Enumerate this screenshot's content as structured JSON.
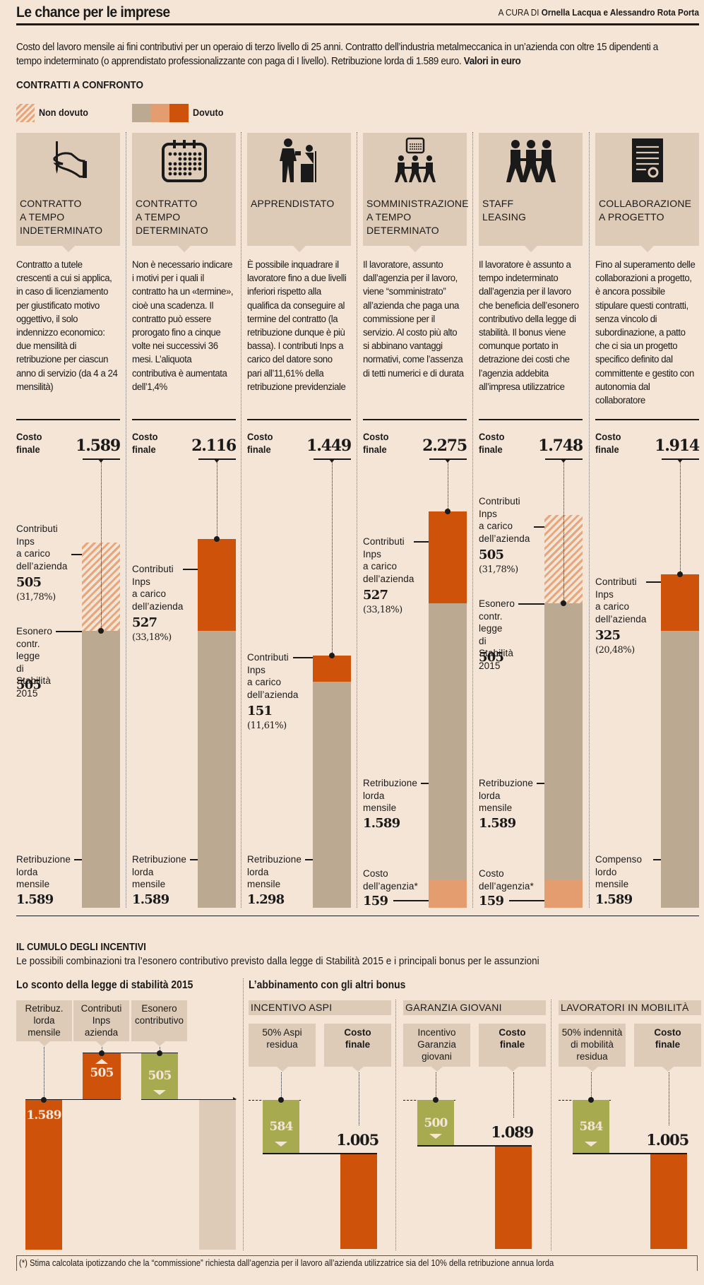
{
  "header": {
    "title": "Le chance per le imprese",
    "credit_prefix": "A CURA DI",
    "credit_authors": "Ornella Lacqua e Alessandro Rota Porta"
  },
  "intro": {
    "text": "Costo del lavoro mensile ai fini contributivi per un operaio di terzo livello di 25 anni. Contratto dell’industria metalmeccanica in un’azienda con oltre 15 dipendenti a tempo indeterminato (o apprendistato professionalizzante con paga di I livello). Retribuzione lorda di 1.589 euro. ",
    "bold_suffix": "Valori in euro"
  },
  "section1": {
    "title": "CONTRATTI A CONFRONTO",
    "legend": {
      "non_dovuto": "Non dovuto",
      "dovuto": "Dovuto",
      "colors": {
        "base": "#bca991",
        "agency": "#e49d6e",
        "inps": "#cf520a",
        "hatch": "#e7a67b"
      }
    }
  },
  "chart_data": [
    {
      "type": "bar",
      "stacked": true,
      "title": "CONTRATTI A CONFRONTO",
      "units": "euro",
      "costo_label": "Costo finale",
      "categories": [
        "CONTRATTO A TEMPO INDETERMINATO",
        "CONTRATTO A TEMPO DETERMINATO",
        "APPRENDISTATO",
        "SOMMINISTRAZIONE A TEMPO DETERMINATO",
        "STAFF LEASING",
        "COLLABORAZIONE A PROGETTO"
      ],
      "contracts": [
        {
          "title_lines": [
            "CONTRATTO",
            "A TEMPO",
            "INDETERMINATO"
          ],
          "icon": "hand-signing-icon",
          "description": "Contratto a tutele crescenti a cui si applica, in caso di licenziamento per giustificato motivo oggettivo, il solo indennizzo economico: due mensilità di retribuzione per ciascun anno di servizio (da 4 a 24 mensilità)",
          "costo_finale": "1.589",
          "segments": [
            {
              "key": "base",
              "label_lines": [
                "Retribuzione",
                "lorda",
                "mensile"
              ],
              "value": 1589,
              "value_text": "1.589",
              "status": "dovuto"
            },
            {
              "key": "esonero",
              "label_lines": [
                "Esonero",
                "contr. legge",
                "di Stabilità",
                "2015"
              ],
              "value": 0,
              "value_text": "505",
              "status": "esonero"
            },
            {
              "key": "inps",
              "label_lines": [
                "Contributi",
                "Inps",
                "a carico",
                "dell’azienda"
              ],
              "value": 505,
              "value_text": "505",
              "pct": "(31,78%)",
              "status": "non_dovuto"
            }
          ]
        },
        {
          "title_lines": [
            "CONTRATTO",
            "A TEMPO",
            "DETERMINATO"
          ],
          "icon": "calendar-icon",
          "description": "Non è necessario indicare i motivi per i quali il contratto ha un «termine», cioè una scadenza. Il contratto può essere prorogato fino a cinque volte nei successivi 36 mesi. L’aliquota contributiva è aumentata dell’1,4%",
          "costo_finale": "2.116",
          "segments": [
            {
              "key": "base",
              "label_lines": [
                "Retribuzione",
                "lorda",
                "mensile"
              ],
              "value": 1589,
              "value_text": "1.589",
              "status": "dovuto"
            },
            {
              "key": "inps",
              "label_lines": [
                "Contributi",
                "Inps",
                "a carico",
                "dell’azienda"
              ],
              "value": 527,
              "value_text": "527",
              "pct": "(33,18%)",
              "status": "dovuto"
            }
          ]
        },
        {
          "title_lines": [
            "APPRENDISTATO"
          ],
          "icon": "apprentice-icon",
          "description": "È possibile inquadrare il lavoratore fino a due livelli inferiori rispetto alla qualifica da conseguire al termine del contratto (la retribuzione dunque è più bassa). I contributi Inps a carico del datore sono pari all’11,61% della retribuzione previdenziale",
          "costo_finale": "1.449",
          "segments": [
            {
              "key": "base",
              "label_lines": [
                "Retribuzione",
                "lorda",
                "mensile"
              ],
              "value": 1298,
              "value_text": "1.298",
              "status": "dovuto"
            },
            {
              "key": "inps",
              "label_lines": [
                "Contributi",
                "Inps",
                "a carico",
                "dell’azienda"
              ],
              "value": 151,
              "value_text": "151",
              "pct": "(11,61%)",
              "status": "dovuto"
            }
          ]
        },
        {
          "title_lines": [
            "SOMMINISTRAZIONE",
            "A TEMPO",
            "DETERMINATO"
          ],
          "icon": "agency-workers-icon",
          "description": "Il lavoratore, assunto dall’agenzia per il lavoro, viene “somministrato” all’azienda che paga una commissione per il servizio. Al costo più alto si abbinano vantaggi normativi, come l’assenza di tetti numerici e di durata",
          "costo_finale": "2.275",
          "segments": [
            {
              "key": "agency",
              "label_lines": [
                "Costo",
                "dell’agenzia*"
              ],
              "value": 159,
              "value_text": "159",
              "status": "dovuto"
            },
            {
              "key": "base",
              "label_lines": [
                "Retribuzione",
                "lorda",
                "mensile"
              ],
              "value": 1589,
              "value_text": "1.589",
              "status": "dovuto"
            },
            {
              "key": "inps",
              "label_lines": [
                "Contributi",
                "Inps",
                "a carico",
                "dell’azienda"
              ],
              "value": 527,
              "value_text": "527",
              "pct": "(33,18%)",
              "status": "dovuto"
            }
          ]
        },
        {
          "title_lines": [
            "STAFF LEASING"
          ],
          "icon": "workers-holding-hands-icon",
          "description": "Il lavoratore è assunto a tempo indeterminato dall’agenzia per il lavoro che beneficia dell’esonero contributivo della legge di stabilità. Il bonus viene comunque portato in detrazione dei costi che l’agenzia addebita all’impresa utilizzatrice",
          "costo_finale": "1.748",
          "segments": [
            {
              "key": "agency",
              "label_lines": [
                "Costo",
                "dell’agenzia*"
              ],
              "value": 159,
              "value_text": "159",
              "status": "dovuto"
            },
            {
              "key": "base",
              "label_lines": [
                "Retribuzione",
                "lorda",
                "mensile"
              ],
              "value": 1589,
              "value_text": "1.589",
              "status": "dovuto"
            },
            {
              "key": "esonero",
              "label_lines": [
                "Esonero",
                "contr. legge",
                "di Stabilità",
                "2015"
              ],
              "value": 0,
              "value_text": "505",
              "status": "esonero"
            },
            {
              "key": "inps",
              "label_lines": [
                "Contributi",
                "Inps",
                "a carico",
                "dell’azienda"
              ],
              "value": 505,
              "value_text": "505",
              "pct": "(31,78%)",
              "status": "non_dovuto"
            }
          ]
        },
        {
          "title_lines": [
            "COLLABORAZIONE",
            "A PROGETTO"
          ],
          "icon": "contract-document-icon",
          "description": "Fino al superamento delle collaborazioni a progetto, è ancora possibile stipulare questi contratti, senza vincolo di subordinazione, a patto che ci sia un progetto specifico definito dal committente e gestito con autonomia dal collaboratore",
          "costo_finale": "1.914",
          "segments": [
            {
              "key": "base",
              "label_lines": [
                "Compenso",
                "lordo",
                "mensile"
              ],
              "value": 1589,
              "value_text": "1.589",
              "status": "dovuto"
            },
            {
              "key": "inps",
              "label_lines": [
                "Contributi",
                "Inps",
                "a carico",
                "dell’azienda"
              ],
              "value": 325,
              "value_text": "325",
              "pct": "(20,48%)",
              "status": "dovuto"
            }
          ]
        }
      ],
      "ylim": [
        0,
        2275
      ]
    },
    {
      "type": "bar",
      "subtype": "waterfall",
      "title": "Lo sconto della legge di stabilità 2015",
      "steps": [
        {
          "label_lines": [
            "Retribuz.",
            "lorda",
            "mensile"
          ],
          "value": 1589,
          "value_text": "1.589",
          "direction": "base",
          "color": "#cf520a"
        },
        {
          "label_lines": [
            "Contributi",
            "Inps",
            "azienda"
          ],
          "value": 505,
          "value_text": "505",
          "direction": "up",
          "color": "#cf520a"
        },
        {
          "label_lines": [
            "Esonero",
            "contributivo"
          ],
          "value": -505,
          "value_text": "505",
          "direction": "down",
          "color": "#a8aa50"
        }
      ],
      "result": 1589
    },
    {
      "type": "bar",
      "subtype": "waterfall",
      "title": "L’abbinamento con gli altri bonus",
      "groups": [
        {
          "name": "INCENTIVO ASPI",
          "reduction_label_lines": [
            "50% Aspi",
            "residua"
          ],
          "reduction": 584,
          "reduction_text": "584",
          "final_label_lines": [
            "Costo",
            "finale"
          ],
          "final": 1005,
          "final_text": "1.005"
        },
        {
          "name": "GARANZIA GIOVANI",
          "reduction_label_lines": [
            "Incentivo",
            "Garanzia",
            "giovani"
          ],
          "reduction": 500,
          "reduction_text": "500",
          "final_label_lines": [
            "Costo",
            "finale"
          ],
          "final": 1089,
          "final_text": "1.089"
        },
        {
          "name": "LAVORATORI IN MOBILITÀ",
          "reduction_label_lines": [
            "50% indennità",
            "di mobilità",
            "residua"
          ],
          "reduction": 584,
          "reduction_text": "584",
          "final_label_lines": [
            "Costo",
            "finale"
          ],
          "final": 1005,
          "final_text": "1.005"
        }
      ],
      "start_value": 1589
    }
  ],
  "section2": {
    "title": "IL CUMULO DEGLI INCENTIVI",
    "subtitle": "Le possibili combinazioni tra l’esonero contributivo previsto dalla legge di Stabilità 2015 e i principali bonus per le assunzioni",
    "left_title": "Lo sconto della legge di stabilità 2015",
    "right_title": "L’abbinamento con gli altri bonus"
  },
  "footnote": "(*) Stima calcolata ipotizzando che la “commissione” richiesta dall’agenzia per il lavoro all’azienda utilizzatrice sia del 10% della retribuzione annua lorda"
}
